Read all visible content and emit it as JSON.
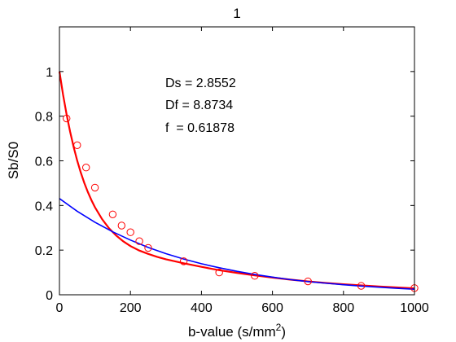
{
  "chart_data": {
    "type": "scatter",
    "title": "1",
    "xlabel_main": "b-value (s/mm",
    "xlabel_sup": "2",
    "xlabel_close": ")",
    "ylabel": "Sb/S0",
    "xlim": [
      0,
      1000
    ],
    "ylim": [
      0,
      1.2
    ],
    "xticks": [
      0,
      200,
      400,
      600,
      800,
      1000
    ],
    "xtick_labels": [
      "0",
      "200",
      "400",
      "600",
      "800",
      "1000"
    ],
    "yticks": [
      0,
      0.2,
      0.4,
      0.6,
      0.8,
      1.0
    ],
    "ytick_labels": [
      "0",
      "0.2",
      "0.4",
      "0.6",
      "0.8",
      "1"
    ],
    "grid": false,
    "annotations": [
      "Ds = 2.8552",
      "Df = 8.8734",
      "f  = 0.61878"
    ],
    "fit_params": {
      "Ds": 2.8552,
      "Df": 8.8734,
      "f": 0.61878
    },
    "colors": {
      "measured": "#ff0000",
      "biexponential_fit": "#ff0000",
      "slow_component": "#0000ff",
      "axes": "#000000"
    },
    "series": [
      {
        "kind": "points",
        "marker": "circle",
        "color": "#ff0000",
        "x": [
          20,
          50,
          75,
          100,
          150,
          175,
          200,
          225,
          250,
          350,
          450,
          550,
          700,
          850,
          1000
        ],
        "y": [
          0.79,
          0.67,
          0.57,
          0.48,
          0.36,
          0.31,
          0.28,
          0.24,
          0.21,
          0.15,
          0.1,
          0.085,
          0.06,
          0.04,
          0.03
        ]
      },
      {
        "kind": "curve",
        "color": "#ff0000",
        "x": [
          0,
          10,
          20,
          30,
          40,
          50,
          60,
          70,
          80,
          90,
          100,
          120,
          140,
          160,
          180,
          200,
          225,
          250,
          275,
          300,
          350,
          400,
          450,
          500,
          550,
          600,
          650,
          700,
          750,
          800,
          850,
          900,
          950,
          1000
        ],
        "y": [
          1.0,
          0.898,
          0.809,
          0.731,
          0.662,
          0.601,
          0.548,
          0.501,
          0.46,
          0.424,
          0.392,
          0.339,
          0.297,
          0.265,
          0.239,
          0.218,
          0.198,
          0.183,
          0.17,
          0.159,
          0.141,
          0.125,
          0.11,
          0.098,
          0.087,
          0.077,
          0.068,
          0.06,
          0.053,
          0.047,
          0.042,
          0.037,
          0.033,
          0.029
        ]
      },
      {
        "kind": "curve",
        "color": "#0000ff",
        "x": [
          0,
          50,
          100,
          150,
          200,
          250,
          300,
          350,
          400,
          450,
          500,
          550,
          600,
          650,
          700,
          750,
          800,
          850,
          900,
          950,
          1000
        ],
        "y": [
          0.431,
          0.374,
          0.325,
          0.282,
          0.245,
          0.212,
          0.184,
          0.16,
          0.139,
          0.121,
          0.105,
          0.091,
          0.079,
          0.068,
          0.059,
          0.052,
          0.045,
          0.039,
          0.034,
          0.029,
          0.025
        ]
      }
    ]
  }
}
